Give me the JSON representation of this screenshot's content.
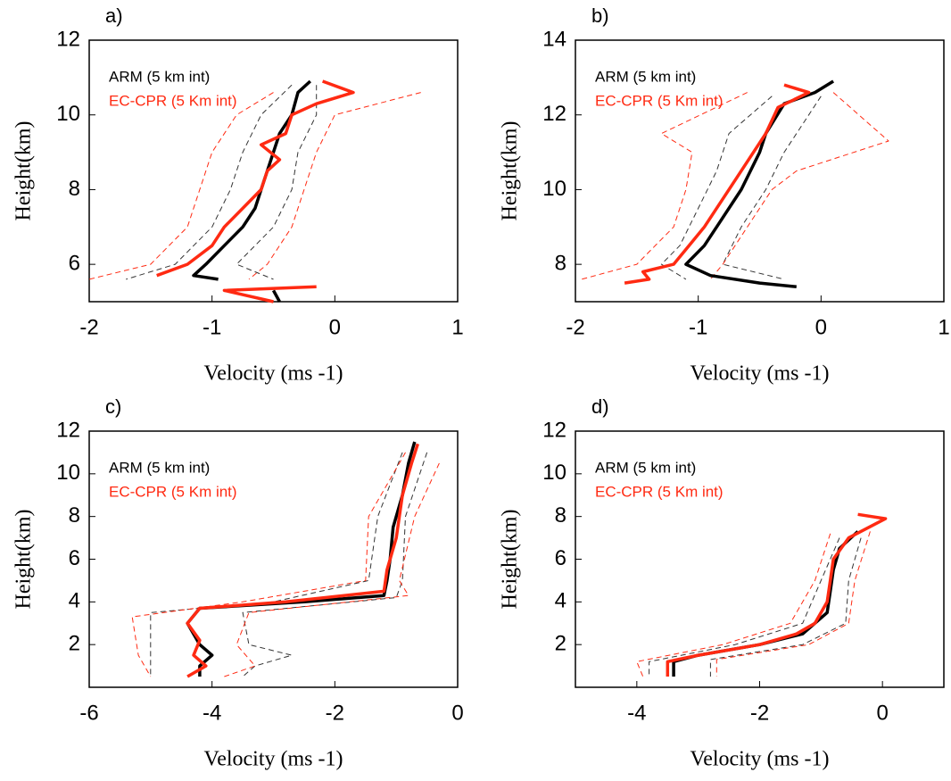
{
  "chart_data": [
    {
      "type": "line",
      "title": "a)",
      "ylabel": "Height(km)",
      "xlabel": "Velocity (ms -1)",
      "xlim": [
        -2,
        1
      ],
      "xticks": [
        -2,
        -1,
        0,
        1
      ],
      "ylim": [
        5,
        12
      ],
      "yticks": [
        6,
        8,
        10,
        12
      ],
      "series": [
        {
          "name": "ARM (5 km int)",
          "color": "#000000",
          "dashed": false,
          "x": [
            -0.2,
            -0.3,
            -0.35,
            -0.45,
            -0.5,
            -0.55,
            -0.6,
            -0.65,
            -0.75,
            -0.9,
            -1.05,
            -1.15,
            -0.95,
            null,
            -0.5,
            -0.45
          ],
          "y": [
            10.9,
            10.6,
            10.0,
            9.5,
            9.0,
            8.5,
            8.0,
            7.5,
            7.0,
            6.5,
            6.0,
            5.7,
            5.6,
            null,
            5.3,
            5.0
          ]
        },
        {
          "name": "EC-CPR (5 Km int)",
          "color": "#ff2a12",
          "dashed": false,
          "x": [
            -0.1,
            0.15,
            -0.15,
            -0.35,
            -0.4,
            -0.6,
            -0.45,
            -0.55,
            -0.6,
            -0.75,
            -0.9,
            -1.0,
            -1.2,
            -1.45,
            null,
            -0.15,
            -0.9,
            -0.5
          ],
          "y": [
            10.9,
            10.6,
            10.3,
            10.0,
            9.5,
            9.2,
            8.8,
            8.5,
            8.0,
            7.5,
            7.0,
            6.5,
            6.0,
            5.7,
            null,
            5.4,
            5.3,
            5.0
          ]
        },
        {
          "color": "#333333",
          "dashed": true,
          "x": [
            -0.35,
            -0.6,
            -0.75,
            -0.85,
            -1.0,
            -1.3,
            -1.7
          ],
          "y": [
            10.8,
            10.0,
            9.0,
            8.0,
            7.0,
            6.0,
            5.6
          ]
        },
        {
          "color": "#333333",
          "dashed": true,
          "x": [
            -0.15,
            -0.15,
            -0.3,
            -0.35,
            -0.5,
            -0.8,
            -0.5
          ],
          "y": [
            10.8,
            10.0,
            9.0,
            8.0,
            7.0,
            6.0,
            5.6
          ]
        },
        {
          "color": "#ff2a12",
          "dashed": true,
          "x": [
            -0.5,
            -0.8,
            -1.0,
            -1.1,
            -1.2,
            -1.5,
            -2.0
          ],
          "y": [
            10.6,
            10.0,
            9.0,
            8.0,
            7.0,
            6.0,
            5.6
          ]
        },
        {
          "color": "#ff2a12",
          "dashed": true,
          "x": [
            0.7,
            0.0,
            -0.15,
            -0.25,
            -0.35,
            -0.55,
            -0.7,
            null,
            0.7
          ],
          "y": [
            10.6,
            10.0,
            9.0,
            8.0,
            7.0,
            6.0,
            5.6,
            null,
            5.4
          ]
        }
      ]
    },
    {
      "type": "line",
      "title": "b)",
      "ylabel": "Height(km)",
      "xlabel": "Velocity (ms -1)",
      "xlim": [
        -2,
        1
      ],
      "xticks": [
        -2,
        -1,
        0,
        1
      ],
      "ylim": [
        7,
        14
      ],
      "yticks": [
        8,
        10,
        12,
        14
      ],
      "series": [
        {
          "name": "ARM (5 km int)",
          "color": "#000000",
          "dashed": false,
          "x": [
            0.1,
            -0.05,
            -0.3,
            -0.45,
            -0.5,
            -0.65,
            -0.85,
            -0.95,
            -1.1,
            -0.9,
            -0.5,
            -0.2
          ],
          "y": [
            12.9,
            12.6,
            12.3,
            11.5,
            11.0,
            10.0,
            9.0,
            8.5,
            8.0,
            7.7,
            7.5,
            7.4
          ]
        },
        {
          "name": "EC-CPR (5 Km int)",
          "color": "#ff2a12",
          "dashed": false,
          "x": [
            -0.3,
            -0.1,
            -0.35,
            -0.45,
            -0.55,
            -0.75,
            -0.95,
            -1.05,
            -1.2,
            -1.45,
            -1.4,
            -1.6
          ],
          "y": [
            12.8,
            12.6,
            12.2,
            11.5,
            11.0,
            10.0,
            9.0,
            8.6,
            8.0,
            7.8,
            7.6,
            7.5
          ]
        },
        {
          "color": "#333333",
          "dashed": true,
          "x": [
            -0.4,
            -0.75,
            -0.85,
            -1.0,
            -1.15,
            -1.3,
            -1.1
          ],
          "y": [
            12.5,
            11.5,
            10.5,
            9.5,
            8.5,
            8.0,
            7.6
          ]
        },
        {
          "color": "#333333",
          "dashed": true,
          "x": [
            0.0,
            -0.1,
            -0.3,
            -0.45,
            -0.65,
            -0.8,
            -0.3
          ],
          "y": [
            12.5,
            12.0,
            11.0,
            10.0,
            9.0,
            8.0,
            7.6
          ]
        },
        {
          "color": "#ff2a12",
          "dashed": true,
          "x": [
            -0.6,
            -1.3,
            -1.05,
            -1.1,
            -1.2,
            -1.5,
            -1.95
          ],
          "y": [
            12.6,
            11.5,
            11.0,
            10.0,
            9.0,
            8.0,
            7.6
          ]
        },
        {
          "color": "#ff2a12",
          "dashed": true,
          "x": [
            0.1,
            0.55,
            -0.2,
            -0.4,
            -0.6,
            -0.8,
            -0.9
          ],
          "y": [
            12.6,
            11.3,
            10.5,
            10.0,
            9.0,
            8.0,
            7.6
          ]
        }
      ]
    },
    {
      "type": "line",
      "title": "c)",
      "ylabel": "Height(km)",
      "xlabel": "Velocity (ms -1)",
      "xlim": [
        -6,
        0
      ],
      "xticks": [
        -6,
        -4,
        -2,
        0
      ],
      "ylim": [
        0,
        12
      ],
      "yticks": [
        2,
        4,
        6,
        8,
        10,
        12
      ],
      "series": [
        {
          "name": "ARM (5 km int)",
          "color": "#000000",
          "dashed": false,
          "x": [
            -0.7,
            -0.8,
            -0.9,
            -1.05,
            -1.1,
            -1.15,
            -1.2,
            -2.5,
            -4.2,
            -4.4,
            -4.2,
            -4.0,
            -4.2,
            -4.2
          ],
          "y": [
            11.5,
            10.5,
            9.0,
            7.5,
            6.0,
            5.0,
            4.3,
            4.0,
            3.7,
            3.0,
            2.0,
            1.5,
            1.0,
            0.5
          ]
        },
        {
          "name": "EC-CPR (5 Km int)",
          "color": "#ff2a12",
          "dashed": false,
          "x": [
            -0.65,
            -0.75,
            -0.9,
            -1.0,
            -1.15,
            -1.2,
            -2.8,
            -4.2,
            -4.4,
            -4.2,
            -4.3,
            -4.1,
            -4.4
          ],
          "y": [
            11.4,
            10.5,
            9.0,
            7.0,
            5.5,
            4.5,
            4.0,
            3.7,
            3.0,
            2.2,
            1.5,
            1.0,
            0.5
          ]
        },
        {
          "color": "#333333",
          "dashed": true,
          "x": [
            -0.9,
            -1.3,
            -1.45,
            -3.0,
            -5.0,
            -5.0,
            -5.0
          ],
          "y": [
            11.0,
            8.0,
            5.0,
            4.0,
            3.5,
            2.0,
            0.5
          ]
        },
        {
          "color": "#333333",
          "dashed": true,
          "x": [
            -0.5,
            -0.85,
            -0.9,
            -1.0,
            -3.5,
            -3.4,
            -2.7,
            -3.3,
            -3.5
          ],
          "y": [
            11.0,
            8.0,
            5.0,
            4.2,
            3.5,
            2.0,
            1.5,
            1.0,
            0.5
          ]
        },
        {
          "color": "#ff2a12",
          "dashed": true,
          "x": [
            -0.85,
            -1.45,
            -1.5,
            -3.5,
            -5.3,
            -5.2,
            -5.0
          ],
          "y": [
            11.0,
            8.0,
            5.0,
            4.0,
            3.3,
            1.5,
            0.5
          ]
        },
        {
          "color": "#ff2a12",
          "dashed": true,
          "x": [
            -0.3,
            -0.7,
            -0.95,
            -0.8,
            -3.4,
            -3.6,
            -3.3,
            -3.8
          ],
          "y": [
            10.5,
            8.0,
            5.0,
            4.3,
            3.5,
            2.0,
            1.0,
            0.5
          ]
        }
      ]
    },
    {
      "type": "line",
      "title": "d)",
      "ylabel": "Height(km)",
      "xlabel": "Velocity (ms -1)",
      "xlim": [
        -5,
        1
      ],
      "xticks": [
        -4,
        -2,
        0
      ],
      "ylim": [
        0,
        12
      ],
      "yticks": [
        2,
        4,
        6,
        8,
        10,
        12
      ],
      "series": [
        {
          "name": "ARM (5 km int)",
          "color": "#000000",
          "dashed": false,
          "x": [
            -0.4,
            -0.7,
            -0.8,
            -0.85,
            -0.9,
            -1.3,
            -2.0,
            -3.0,
            -3.4,
            -3.4
          ],
          "y": [
            7.3,
            6.5,
            5.5,
            4.5,
            3.5,
            2.5,
            2.0,
            1.5,
            1.2,
            0.5
          ]
        },
        {
          "name": "EC-CPR (5 Km int)",
          "color": "#ff2a12",
          "dashed": false,
          "x": [
            -0.4,
            0.05,
            -0.55,
            -0.8,
            -0.85,
            -0.9,
            -1.1,
            -1.4,
            -2.0,
            -3.0,
            -3.5,
            -3.5
          ],
          "y": [
            8.1,
            7.9,
            7.0,
            6.0,
            5.0,
            4.0,
            3.0,
            2.5,
            2.0,
            1.5,
            1.2,
            0.5
          ]
        },
        {
          "color": "#333333",
          "dashed": true,
          "x": [
            -0.7,
            -1.0,
            -1.3,
            -2.4,
            -3.8,
            -3.8
          ],
          "y": [
            7.0,
            5.0,
            3.0,
            2.0,
            1.2,
            0.5
          ]
        },
        {
          "color": "#333333",
          "dashed": true,
          "x": [
            -0.35,
            -0.55,
            -0.6,
            -1.3,
            -2.8,
            -2.8
          ],
          "y": [
            7.0,
            5.0,
            3.0,
            2.0,
            1.3,
            0.5
          ]
        },
        {
          "color": "#ff2a12",
          "dashed": true,
          "x": [
            -0.85,
            -1.1,
            -1.5,
            -2.6,
            -4.0,
            -3.9
          ],
          "y": [
            7.2,
            5.0,
            3.0,
            2.0,
            1.2,
            0.5
          ]
        },
        {
          "color": "#ff2a12",
          "dashed": true,
          "x": [
            -0.2,
            -0.45,
            -0.55,
            -1.2,
            -2.7,
            -2.7
          ],
          "y": [
            7.3,
            5.0,
            3.0,
            2.0,
            1.3,
            0.5
          ]
        }
      ]
    }
  ]
}
